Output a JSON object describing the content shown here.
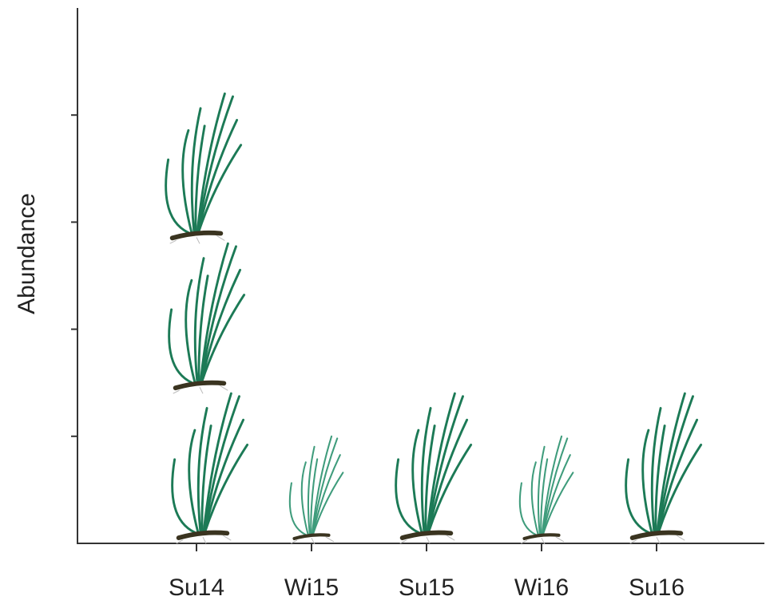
{
  "chart_data": {
    "type": "pictogram",
    "y_label": "Abundance",
    "categories": [
      "Su14",
      "Wi15",
      "Su15",
      "Wi16",
      "Su16"
    ],
    "values": [
      4.2,
      1.0,
      1.4,
      1.0,
      1.4
    ],
    "colors": [
      "#1c7a56",
      "#3f9c7c",
      "#1c7a56",
      "#3f9c7c",
      "#1c7a56"
    ],
    "ylim": [
      0,
      5
    ],
    "yticks": [
      1,
      2,
      3,
      4
    ]
  }
}
